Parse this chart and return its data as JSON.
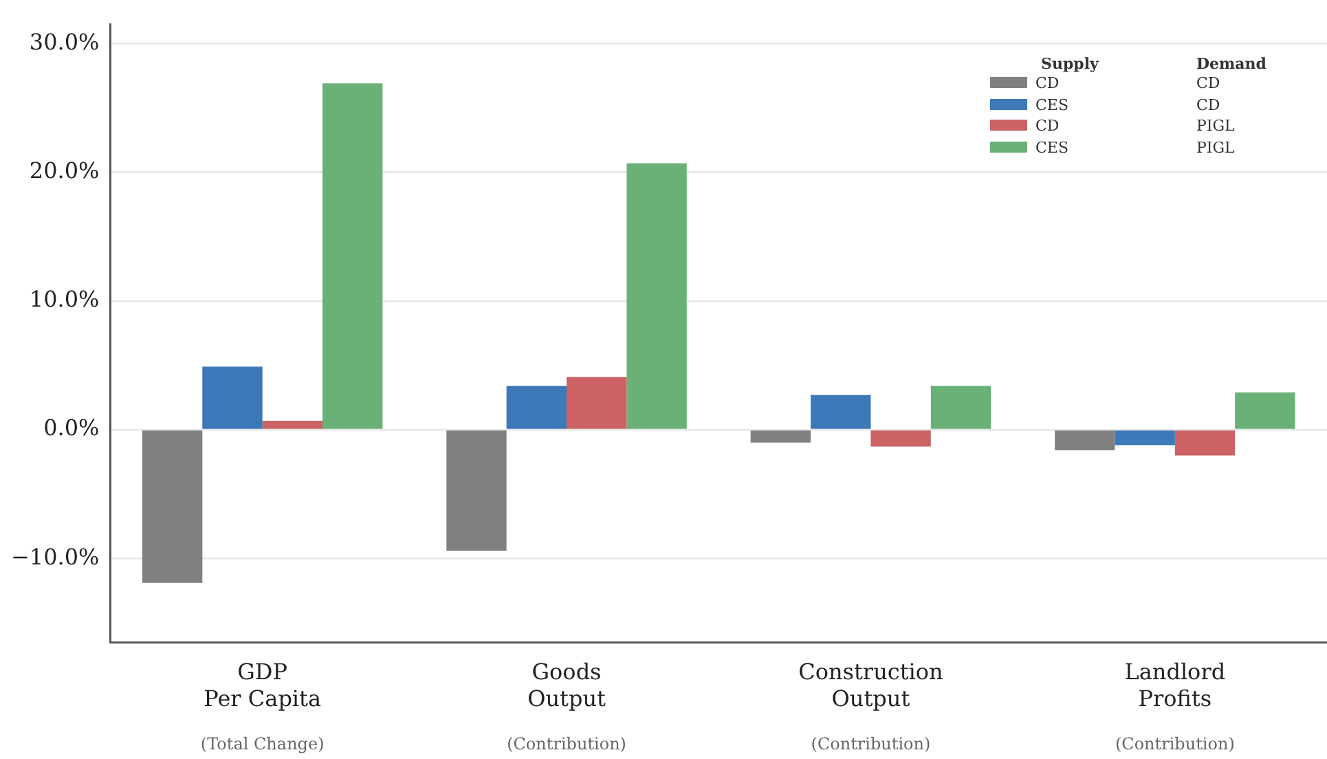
{
  "chart_data": {
    "type": "bar",
    "categories": [
      "GDP\nPer Capita\n(Total Change)",
      "Goods\nOutput\n(Contribution)",
      "Construction\nOutput\n(Contribution)",
      "Landlord\nProfits\n(Contribution)"
    ],
    "legend_title": "Supply\tDemand",
    "series": [
      {
        "name": "CD\tCD",
        "color": "#808080",
        "values": [
          -11.9,
          -9.4,
          -1.0,
          -1.6
        ]
      },
      {
        "name": "CES\tCD",
        "color": "#3d78b8",
        "values": [
          4.9,
          3.4,
          2.7,
          -1.2
        ]
      },
      {
        "name": "CD\tPIGL",
        "color": "#cc6264",
        "values": [
          0.7,
          4.1,
          -1.3,
          -2.0
        ]
      },
      {
        "name": "CES\tPIGL",
        "color": "#6ab177",
        "values": [
          26.9,
          20.7,
          3.4,
          2.9
        ]
      }
    ],
    "ylim": [
      -16.5,
      31.5
    ],
    "yticks": [
      {
        "value": -10,
        "label": "−10.0%"
      },
      {
        "value": 0,
        "label": "0.0%"
      },
      {
        "value": 10,
        "label": "10.0%"
      },
      {
        "value": 20,
        "label": "20.0%"
      },
      {
        "value": 30,
        "label": "30.0%"
      }
    ],
    "grid": "y",
    "legend": "top right"
  }
}
